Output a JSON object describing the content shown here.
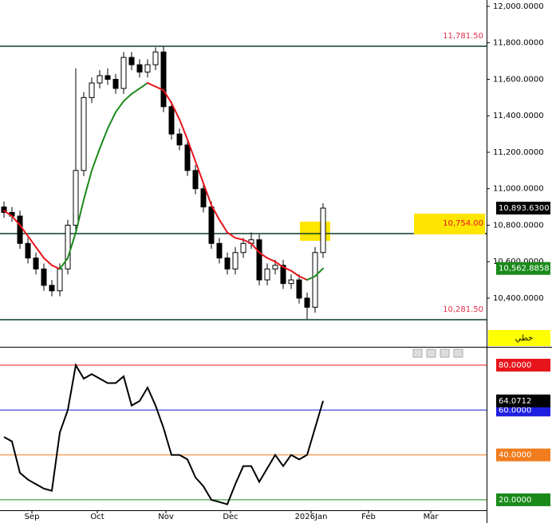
{
  "chart_data": [
    {
      "type": "candlestick",
      "x": [
        0,
        1,
        2,
        3,
        4,
        5,
        6,
        7,
        8,
        9,
        10,
        11,
        12,
        13,
        14,
        15,
        16,
        17,
        18,
        19,
        20,
        21,
        22,
        23,
        24,
        25,
        26,
        27,
        28,
        29,
        30,
        31,
        32,
        33,
        34,
        35,
        36,
        37,
        38,
        39,
        40
      ],
      "open": [
        10900,
        10870,
        10850,
        10700,
        10620,
        10560,
        10470,
        10440,
        10560,
        10800,
        11100,
        11500,
        11580,
        11620,
        11600,
        11550,
        11720,
        11680,
        11640,
        11680,
        11750,
        11450,
        11300,
        11240,
        11100,
        11000,
        10900,
        10700,
        10620,
        10560,
        10650,
        10700,
        10720,
        10500,
        10560,
        10580,
        10480,
        10500,
        10400,
        10350,
        10650
      ],
      "high": [
        10930,
        10900,
        10880,
        10730,
        10650,
        10590,
        10500,
        10590,
        10830,
        11660,
        11530,
        11610,
        11650,
        11660,
        11630,
        11750,
        11750,
        11710,
        11710,
        11775,
        11780,
        11480,
        11330,
        11270,
        11130,
        11030,
        10930,
        10730,
        10650,
        10680,
        10730,
        10760,
        10750,
        10590,
        10610,
        10610,
        10530,
        10530,
        10430,
        10680,
        10920
      ],
      "low": [
        10840,
        10820,
        10670,
        10590,
        10530,
        10440,
        10410,
        10410,
        10530,
        10770,
        11070,
        11470,
        11550,
        11570,
        11520,
        11520,
        11650,
        11610,
        11610,
        11650,
        11420,
        11270,
        11210,
        11070,
        10970,
        10870,
        10670,
        10590,
        10530,
        10530,
        10620,
        10670,
        10470,
        10470,
        10530,
        10450,
        10450,
        10370,
        10285,
        10320,
        10620
      ],
      "close": [
        10870,
        10850,
        10700,
        10620,
        10560,
        10470,
        10440,
        10560,
        10800,
        11100,
        11500,
        11580,
        11620,
        11600,
        11550,
        11720,
        11680,
        11640,
        11680,
        11750,
        11450,
        11300,
        11240,
        11100,
        11000,
        10900,
        10700,
        10620,
        10560,
        10650,
        10700,
        10720,
        10500,
        10560,
        10580,
        10480,
        10500,
        10400,
        10350,
        10650,
        10893.63
      ],
      "close_label": "10,893.6300",
      "moving_average": {
        "values": [
          10880,
          10850,
          10800,
          10740,
          10680,
          10620,
          10580,
          10560,
          10620,
          10760,
          10940,
          11100,
          11220,
          11330,
          11420,
          11480,
          11520,
          11550,
          11580,
          11560,
          11540,
          11470,
          11380,
          11270,
          11150,
          11030,
          10910,
          10830,
          10760,
          10730,
          10720,
          10700,
          10650,
          10620,
          10600,
          10570,
          10550,
          10520,
          10500,
          10520,
          10562.8858
        ],
        "label": "10,562.8858",
        "up_color": "#1a8a1a",
        "down_color": "#e8141c"
      },
      "hlines": [
        {
          "value": 11781.5,
          "label": "11,781.50"
        },
        {
          "value": 10754,
          "label": "10,754.00"
        },
        {
          "value": 10281.5,
          "label": "10,281.50"
        }
      ],
      "badge": "خطي",
      "xlim": [
        -0.5,
        60.5
      ],
      "ylim": [
        10133,
        12035
      ],
      "yticks": [
        {
          "value": 12000,
          "label": "12,000.0000"
        },
        {
          "value": 11800,
          "label": "11,800.0000"
        },
        {
          "value": 11600,
          "label": "11,600.0000"
        },
        {
          "value": 11400,
          "label": "11,400.0000"
        },
        {
          "value": 11200,
          "label": "11,200.0000"
        },
        {
          "value": 11000,
          "label": "11,000.0000"
        },
        {
          "value": 10800,
          "label": "10,800.0000"
        },
        {
          "value": 10600,
          "label": "10,600.0000"
        },
        {
          "value": 10400,
          "label": "10,400.0000"
        }
      ]
    },
    {
      "type": "line",
      "x": [
        0,
        1,
        2,
        3,
        4,
        5,
        6,
        7,
        8,
        9,
        10,
        11,
        12,
        13,
        14,
        15,
        16,
        17,
        18,
        19,
        20,
        21,
        22,
        23,
        24,
        25,
        26,
        27,
        28,
        29,
        30,
        31,
        32,
        33,
        34,
        35,
        36,
        37,
        38,
        39,
        40
      ],
      "values": [
        48,
        46,
        32,
        29,
        27,
        25,
        24,
        50,
        60,
        80,
        74,
        76,
        74,
        72,
        72,
        75,
        62,
        64,
        70,
        62,
        52,
        40,
        40,
        38,
        30,
        26,
        20,
        19,
        18,
        27,
        35,
        35,
        28,
        34,
        40,
        35,
        40,
        38,
        40,
        52,
        64.0712
      ],
      "value_label": "64.0712",
      "color": "#000000",
      "xlim": [
        -0.5,
        60.5
      ],
      "ylim": [
        15.35,
        87.46
      ],
      "yticks": [
        {
          "value": 80,
          "label": "80.0000"
        },
        {
          "value": 60,
          "label": "60.0000"
        },
        {
          "value": 40,
          "label": "40.0000"
        },
        {
          "value": 20,
          "label": "20.0000"
        }
      ],
      "level_colors": [
        "#e8141c",
        "#1f1fe0",
        "#f07c1e",
        "#1a8a1a"
      ],
      "xticks": [
        {
          "value": 3.5,
          "label": "Sep"
        },
        {
          "value": 11.7,
          "label": "Oct"
        },
        {
          "value": 20.3,
          "label": "Nov"
        },
        {
          "value": 28.4,
          "label": "Dec"
        },
        {
          "value": 38.5,
          "label": "2026Jan"
        },
        {
          "value": 45.7,
          "label": "Feb"
        },
        {
          "value": 53.5,
          "label": "Mar"
        }
      ]
    }
  ]
}
